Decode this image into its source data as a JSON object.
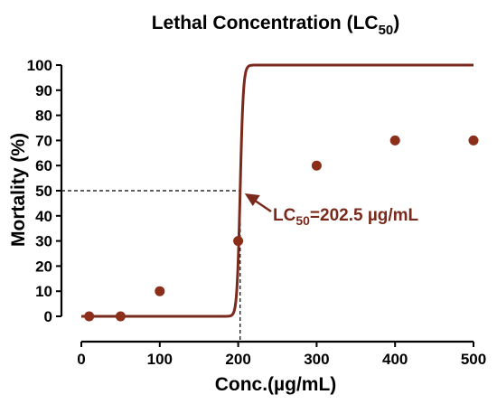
{
  "chart_data": {
    "type": "scatter",
    "title": {
      "main": "Lethal Concentration (LC",
      "sub": "50",
      "end": ")"
    },
    "xlabel": "Conc.(µg/mL)",
    "ylabel": "Mortality (%)",
    "xlim": [
      0,
      500
    ],
    "ylim": [
      0,
      100
    ],
    "xticks": [
      0,
      100,
      200,
      300,
      400,
      500
    ],
    "yticks": [
      0,
      10,
      20,
      30,
      40,
      50,
      60,
      70,
      80,
      90,
      100
    ],
    "grid": false,
    "legend": "none",
    "colors": {
      "marker": "#8b2e1a",
      "curve": "#7a2a1c",
      "guide": "#000000",
      "annotation": "#7a2a1c"
    },
    "series": [
      {
        "x": [
          10,
          50,
          100,
          200,
          300,
          400,
          500
        ],
        "y": [
          0,
          0,
          10,
          30,
          60,
          70,
          70
        ]
      }
    ],
    "fit_curve": {
      "model": "sigmoid",
      "bottom": 0,
      "top": 100,
      "lc50": 202.5,
      "hill_slope": 0.5
    },
    "annotation": {
      "prefix": "LC",
      "sub": "50",
      "suffix": "=202.5 µg/mL",
      "x": 202.5,
      "y": 50
    }
  }
}
